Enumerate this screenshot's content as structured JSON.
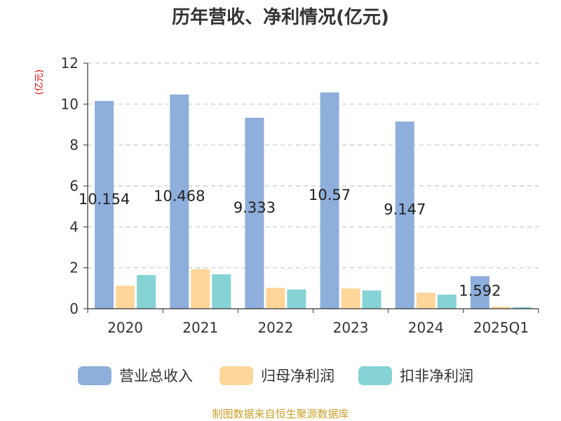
{
  "chart_data": {
    "type": "bar",
    "title": "历年营收、净利情况(亿元)",
    "ylabel": "(亿元)",
    "categories": [
      "2020",
      "2021",
      "2022",
      "2023",
      "2024",
      "2025Q1"
    ],
    "ylim": [
      0,
      12
    ],
    "yticks": [
      "0",
      "2",
      "4",
      "6",
      "8",
      "10",
      "12"
    ],
    "grid": true,
    "legend_position": "bottom",
    "series": [
      {
        "name": "营业总收入",
        "color": "#8eaedb",
        "values": [
          10.154,
          10.468,
          9.333,
          10.57,
          9.147,
          1.592
        ],
        "labels": [
          "10.154",
          "10.468",
          "9.333",
          "10.57",
          "9.147",
          "1.592"
        ]
      },
      {
        "name": "归母净利润",
        "color": "#ffd699",
        "values": [
          1.12,
          1.93,
          1.02,
          0.99,
          0.78,
          0.1
        ]
      },
      {
        "name": "扣非净利润",
        "color": "#86d3d6",
        "values": [
          1.65,
          1.68,
          0.94,
          0.89,
          0.69,
          0.08
        ]
      }
    ],
    "source": "制图数据来自恒生聚源数据库"
  }
}
